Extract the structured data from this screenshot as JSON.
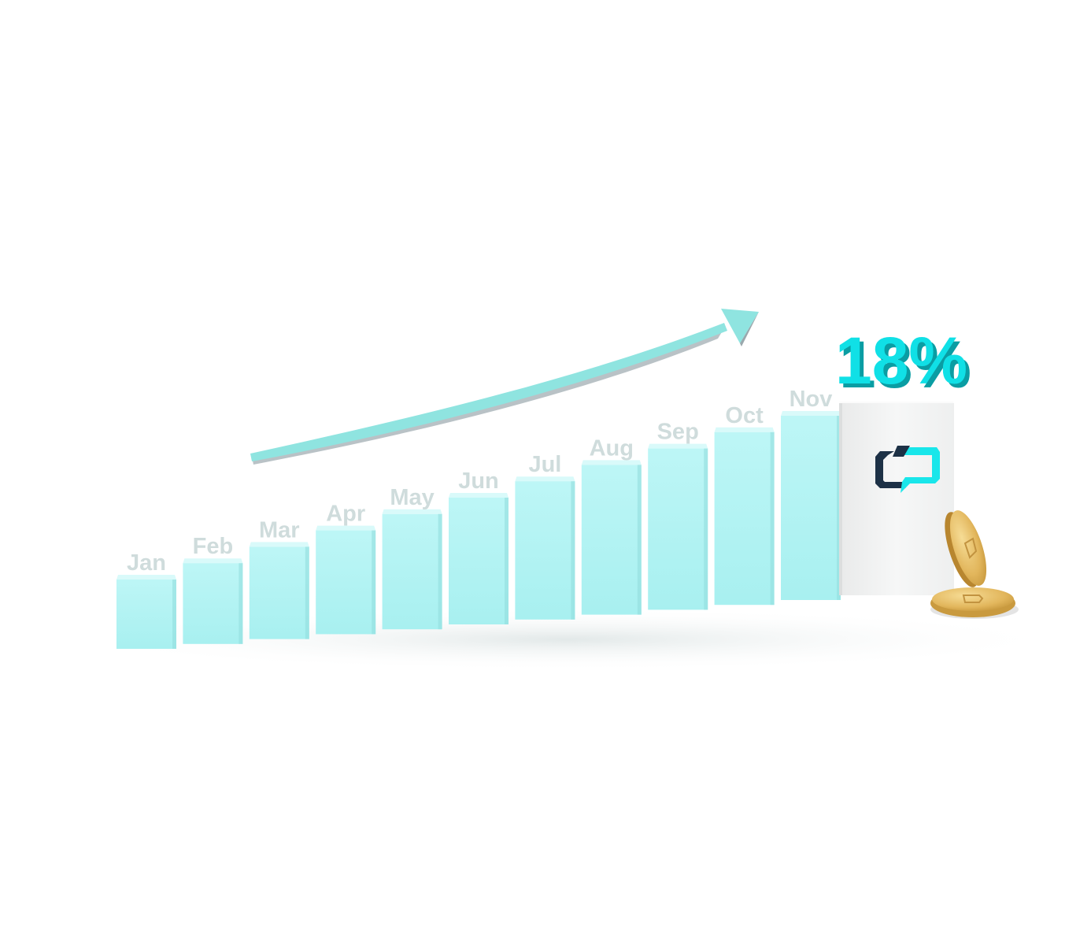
{
  "chart_data": {
    "type": "bar",
    "categories": [
      "Jan",
      "Feb",
      "Mar",
      "Apr",
      "May",
      "Jun",
      "Jul",
      "Aug",
      "Sep",
      "Oct",
      "Nov"
    ],
    "values": [
      1,
      2,
      3,
      4,
      5,
      6,
      7,
      8,
      9,
      10,
      11
    ],
    "highlight": {
      "value_label": "18%"
    },
    "trend": "upward arrow",
    "grid": false,
    "legend": "none"
  },
  "colors": {
    "bar_front": "#b2f3f3",
    "bar_top": "#d9fafa",
    "bar_side": "#93dddd",
    "month_label": "#cfdcdc",
    "arrow": "#8fe4e0",
    "arrow_shadow": "#b9c2c6",
    "pct_front": "#10e0e6",
    "pct_side": "#0a9da3",
    "box_front": "#f1f2f2",
    "logo_dark": "#1d3146",
    "logo_accent": "#19e6ea",
    "coin": "#e8c16a"
  },
  "icons": {
    "logo": "brand-logo-icon",
    "coin": "coin-icon"
  }
}
